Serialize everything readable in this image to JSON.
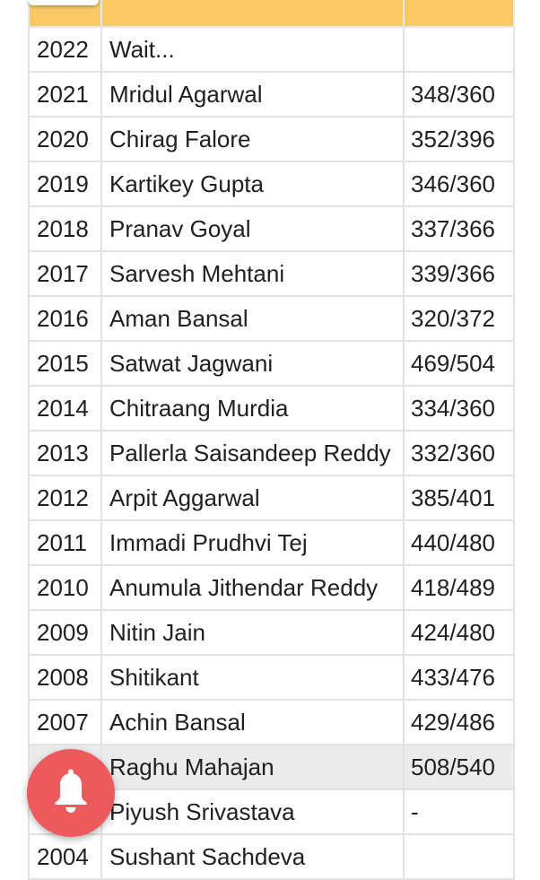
{
  "table": {
    "header": {
      "year": "",
      "name": "",
      "marks": ""
    },
    "rows": [
      {
        "year": "2022",
        "name": "Wait...",
        "marks": ""
      },
      {
        "year": "2021",
        "name": "Mridul Agarwal",
        "marks": "348/360"
      },
      {
        "year": "2020",
        "name": "Chirag Falore",
        "marks": "352/396"
      },
      {
        "year": "2019",
        "name": "Kartikey Gupta",
        "marks": "346/360"
      },
      {
        "year": "2018",
        "name": "Pranav Goyal",
        "marks": "337/366"
      },
      {
        "year": "2017",
        "name": "Sarvesh Mehtani",
        "marks": "339/366"
      },
      {
        "year": "2016",
        "name": "Aman Bansal",
        "marks": "320/372"
      },
      {
        "year": "2015",
        "name": "Satwat Jagwani",
        "marks": "469/504"
      },
      {
        "year": "2014",
        "name": "Chitraang Murdia",
        "marks": "334/360"
      },
      {
        "year": "2013",
        "name": "Pallerla Saisandeep Reddy",
        "marks": "332/360"
      },
      {
        "year": "2012",
        "name": "Arpit Aggarwal",
        "marks": "385/401"
      },
      {
        "year": "2011",
        "name": "Immadi Prudhvi Tej",
        "marks": "440/480"
      },
      {
        "year": "2010",
        "name": "Anumula Jithendar Reddy",
        "marks": "418/489"
      },
      {
        "year": "2009",
        "name": "Nitin Jain",
        "marks": "424/480"
      },
      {
        "year": "2008",
        "name": "Shitikant",
        "marks": "433/476"
      },
      {
        "year": "2007",
        "name": "Achin Bansal",
        "marks": "429/486"
      },
      {
        "year": "",
        "name": "Raghu Mahajan",
        "marks": "508/540"
      },
      {
        "year": "",
        "name": "Piyush Srivastava",
        "marks": "-"
      },
      {
        "year": "2004",
        "name": "Sushant Sachdeva",
        "marks": ""
      }
    ]
  },
  "notify_button": {
    "icon": "bell-icon"
  },
  "colors": {
    "header_bg": "#fbc867",
    "highlight_row_bg": "#ebebeb",
    "notify_bg": "#ed5a5e",
    "border": "#e2e2e2"
  }
}
